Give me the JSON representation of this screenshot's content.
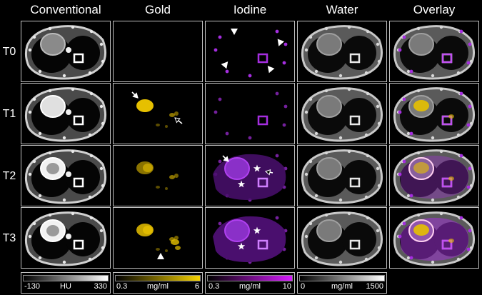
{
  "headers": [
    "Conventional",
    "Gold",
    "Iodine",
    "Water",
    "Overlay"
  ],
  "rows": [
    "T0",
    "T1",
    "T2",
    "T3"
  ],
  "colorbars": {
    "conventional": {
      "min": "-130",
      "unit": "HU",
      "max": "330",
      "colors": [
        "#000000",
        "#ffffff"
      ]
    },
    "gold": {
      "min": "0.3",
      "unit": "mg/ml",
      "max": "6",
      "colors": [
        "#000000",
        "#f6d200"
      ]
    },
    "iodine": {
      "min": "0.3",
      "unit": "mg/ml",
      "max": "10",
      "colors": [
        "#000000",
        "#d81cff"
      ]
    },
    "water": {
      "min": "0",
      "unit": "mg/ml",
      "max": "1500",
      "colors": [
        "#000000",
        "#ffffff"
      ]
    }
  },
  "colors": {
    "gold": "#e6c000",
    "iodine": "#a52ee0",
    "frame": "#bfbfbf"
  }
}
